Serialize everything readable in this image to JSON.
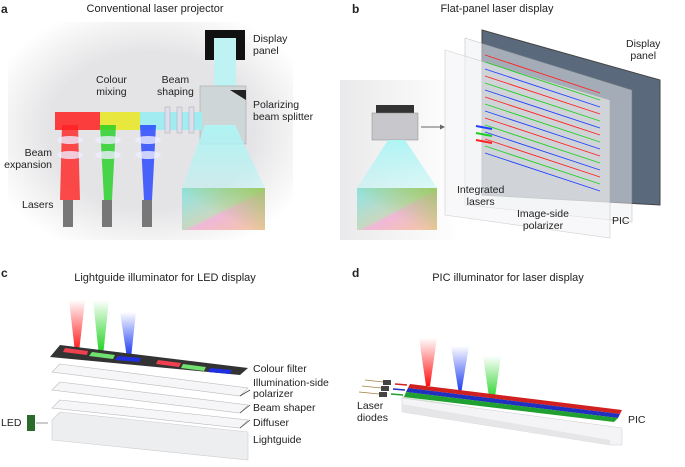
{
  "panels": [
    {
      "letter": "a",
      "title": "Conventional laser projector",
      "labels": {
        "display_panel": [
          "Display",
          "panel"
        ],
        "colour_mixing": [
          "Colour",
          "mixing"
        ],
        "beam_shaping": [
          "Beam",
          "shaping"
        ],
        "polarizing": [
          "Polarizing",
          "beam splitter"
        ],
        "beam_expansion": [
          "Beam",
          "expansion"
        ],
        "lasers": "Lasers"
      }
    },
    {
      "letter": "b",
      "title": "Flat-panel laser display",
      "labels": {
        "display_panel": [
          "Display",
          "panel"
        ],
        "integrated_lasers": [
          "Integrated",
          "lasers"
        ],
        "polarizer": [
          "Image-side",
          "polarizer"
        ],
        "pic": "PIC"
      }
    },
    {
      "letter": "c",
      "title": "Lightguide illuminator for LED display",
      "labels": {
        "colour_filter": "Colour filter",
        "illum_polarizer": [
          "Illumination-side",
          "polarizer"
        ],
        "beam_shaper": "Beam shaper",
        "diffuser": "Diffuser",
        "lightguide": "Lightguide",
        "led": "LED"
      }
    },
    {
      "letter": "d",
      "title": "PIC illuminator for laser display",
      "labels": {
        "laser_diodes": [
          "Laser",
          "diodes"
        ],
        "pic": "PIC"
      }
    }
  ],
  "colors": {
    "red": "#ff2020",
    "green": "#20d020",
    "blue": "#2040ff",
    "cyan": "#a8f0f0"
  }
}
